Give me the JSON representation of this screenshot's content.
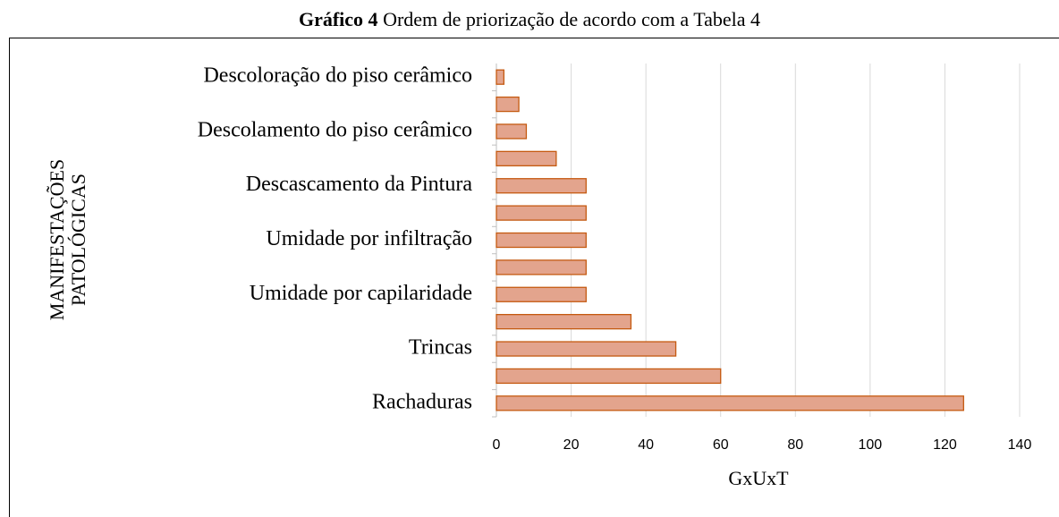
{
  "chart_data": {
    "type": "barh",
    "title_label": "Gráfico 4",
    "title": "Ordem de priorização de acordo com a Tabela 4",
    "xlabel": "GxUxT",
    "ylabel": [
      "MANIFESTAÇÕES",
      "PATOLÓGICAS"
    ],
    "categories": [
      "Rachaduras",
      null,
      "Trincas",
      null,
      "Umidade por capilaridade",
      null,
      "Umidade por infiltração",
      null,
      "Descascamento da Pintura",
      null,
      "Descolamento do piso cerâmico",
      null,
      "Descoloração do piso cerâmico"
    ],
    "values": [
      125,
      60,
      48,
      36,
      24,
      24,
      24,
      24,
      24,
      16,
      8,
      6,
      2
    ],
    "color": "#e3a48d",
    "edge_color": "#c55a11",
    "xlim": [
      0,
      140
    ],
    "xticks": [
      0,
      20,
      40,
      60,
      80,
      100,
      120,
      140
    ],
    "grid": true
  }
}
